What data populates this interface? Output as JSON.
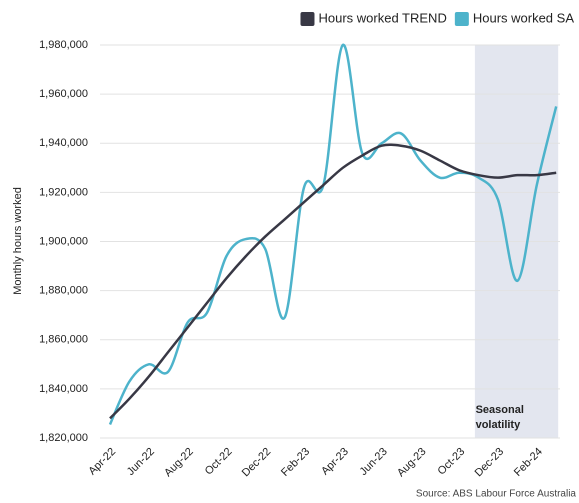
{
  "chart_data": {
    "type": "line",
    "y_label": "Monthly hours worked",
    "source": "Source: ABS Labour Force Australia",
    "annotation": [
      "Seasonal",
      "volatility"
    ],
    "categories": [
      "Apr-22",
      null,
      "Jun-22",
      null,
      "Aug-22",
      null,
      "Oct-22",
      null,
      "Dec-22",
      null,
      "Feb-23",
      null,
      "Apr-23",
      null,
      "Jun-23",
      null,
      "Aug-23",
      null,
      "Oct-23",
      null,
      "Dec-23",
      null,
      "Feb-24",
      null
    ],
    "series": [
      {
        "name": "Hours worked TREND",
        "color": "#383845",
        "values": [
          1828000,
          1836000,
          1845000,
          1855000,
          1865000,
          1875000,
          1885000,
          1894000,
          1902000,
          1909000,
          1916000,
          1923000,
          1930000,
          1935000,
          1939000,
          1939000,
          1937000,
          1933000,
          1929000,
          1927000,
          1926000,
          1927000,
          1927000,
          1928000
        ]
      },
      {
        "name": "Hours worked SA",
        "color": "#4db3cb",
        "values": [
          1825500,
          1843000,
          1850000,
          1847000,
          1867000,
          1871000,
          1894000,
          1901000,
          1897000,
          1869000,
          1922000,
          1923000,
          1980000,
          1936000,
          1940000,
          1944000,
          1933000,
          1926000,
          1928000,
          1926000,
          1917000,
          1884000,
          1923000,
          1955000
        ]
      }
    ],
    "ylim": [
      1820000,
      1980000
    ],
    "yticks": [
      {
        "value": 1820000,
        "label": "1,820,000"
      },
      {
        "value": 1840000,
        "label": "1,840,000"
      },
      {
        "value": 1860000,
        "label": "1,860,000"
      },
      {
        "value": 1880000,
        "label": "1,880,000"
      },
      {
        "value": 1900000,
        "label": "1,900,000"
      },
      {
        "value": 1920000,
        "label": "1,920,000"
      },
      {
        "value": 1940000,
        "label": "1,940,000"
      },
      {
        "value": 1960000,
        "label": "1,960,000"
      },
      {
        "value": 1980000,
        "label": "1,980,000"
      }
    ],
    "grid": true,
    "legend": "top-right"
  }
}
